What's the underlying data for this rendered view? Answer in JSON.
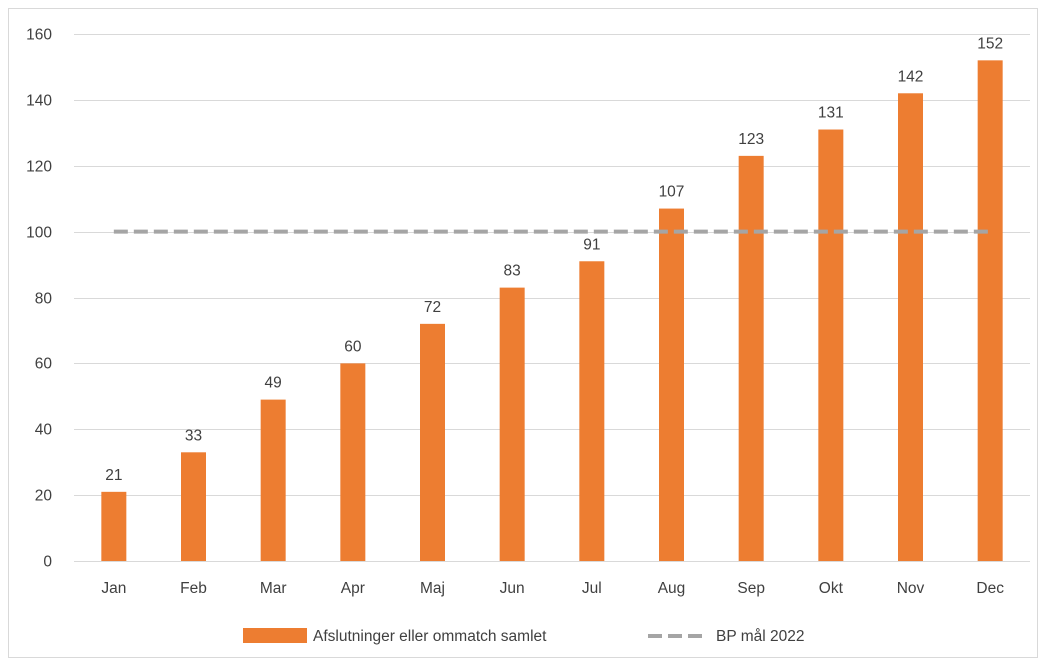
{
  "chart_data": {
    "type": "bar",
    "title": "",
    "xlabel": "",
    "ylabel": "",
    "categories": [
      "Jan",
      "Feb",
      "Mar",
      "Apr",
      "Maj",
      "Jun",
      "Jul",
      "Aug",
      "Sep",
      "Okt",
      "Nov",
      "Dec"
    ],
    "series": [
      {
        "name": "Afslutninger eller ommatch samlet",
        "type": "bar",
        "color": "#ED7D31",
        "values": [
          21,
          33,
          49,
          60,
          72,
          83,
          91,
          107,
          123,
          131,
          142,
          152
        ],
        "data_labels": [
          "21",
          "33",
          "49",
          "60",
          "72",
          "83",
          "91",
          "107",
          "123",
          "131",
          "142",
          "152"
        ]
      },
      {
        "name": "BP mål 2022",
        "type": "line",
        "style": "dashed",
        "color": "#A5A5A5",
        "values": [
          100,
          100,
          100,
          100,
          100,
          100,
          100,
          100,
          100,
          100,
          100,
          100
        ]
      }
    ],
    "ylim": [
      0,
      160
    ],
    "yticks": [
      0,
      20,
      40,
      60,
      80,
      100,
      120,
      140,
      160
    ],
    "ytick_labels": [
      "0",
      "20",
      "40",
      "60",
      "80",
      "100",
      "120",
      "140",
      "160"
    ],
    "grid": true,
    "legend_position": "bottom-center"
  }
}
